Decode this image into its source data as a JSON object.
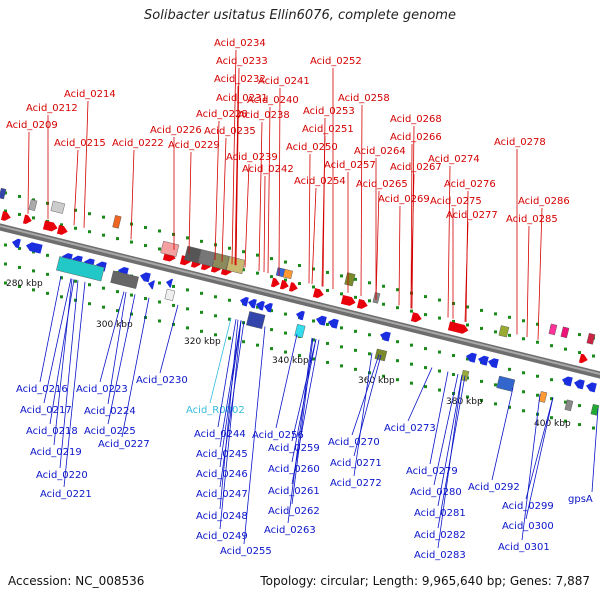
{
  "title": "Solibacter usitatus Ellin6076, complete genome",
  "footer": {
    "accession": "Accession: NC_008536",
    "stats": "Topology: circular; Length: 9,965,640 bp; Genes: 7,887"
  },
  "ticks": [
    "280 kbp",
    "300 kbp",
    "320 kbp",
    "340 kbp",
    "360 kbp",
    "380 kbp",
    "400 kbp"
  ],
  "colors": {
    "forward_label": "#d40000",
    "reverse_label": "#0a14c8",
    "rna_label": "#33bbdd",
    "backbone": "#8c8c8c",
    "forward_gene": "#e8000a",
    "reverse_gene": "#1a2ee0"
  },
  "genes_top": [
    "Acid_0234",
    "Acid_0233",
    "Acid_0232",
    "Acid_0241",
    "Acid_0252",
    "Acid_0214",
    "Acid_0231",
    "Acid_0240",
    "Acid_0258",
    "Acid_0212",
    "Acid_0228",
    "Acid_0238",
    "Acid_0253",
    "Acid_0209",
    "Acid_0226",
    "Acid_0235",
    "Acid_0251",
    "Acid_0268",
    "Acid_0266",
    "Acid_0278",
    "Acid_0215",
    "Acid_0222",
    "Acid_0229",
    "Acid_0250",
    "Acid_0264",
    "Acid_0239",
    "Acid_0267",
    "Acid_0274",
    "Acid_0242",
    "Acid_0257",
    "Acid_0254",
    "Acid_0265",
    "Acid_0276",
    "Acid_0269",
    "Acid_0275",
    "Acid_0286",
    "Acid_0277",
    "Acid_0285"
  ],
  "genes_bottom": [
    "Acid_0230",
    "Acid_0216",
    "Acid_0223",
    "Acid_0217",
    "Acid_0224",
    "Acid_R0002",
    "Acid_0218",
    "Acid_0225",
    "Acid_0244",
    "Acid_0256",
    "Acid_0273",
    "Acid_0227",
    "Acid_0219",
    "Acid_0245",
    "Acid_0259",
    "Acid_0270",
    "Acid_0220",
    "Acid_0246",
    "Acid_0260",
    "Acid_0271",
    "Acid_0279",
    "Acid_0221",
    "Acid_0247",
    "Acid_0261",
    "Acid_0272",
    "Acid_0292",
    "Acid_0280",
    "Acid_0299",
    "Acid_0248",
    "Acid_0262",
    "Acid_0281",
    "Acid_0300",
    "gpsA",
    "Acid_0249",
    "Acid_0263",
    "Acid_0282",
    "Acid_0301",
    "Acid_0255",
    "Acid_0283"
  ]
}
